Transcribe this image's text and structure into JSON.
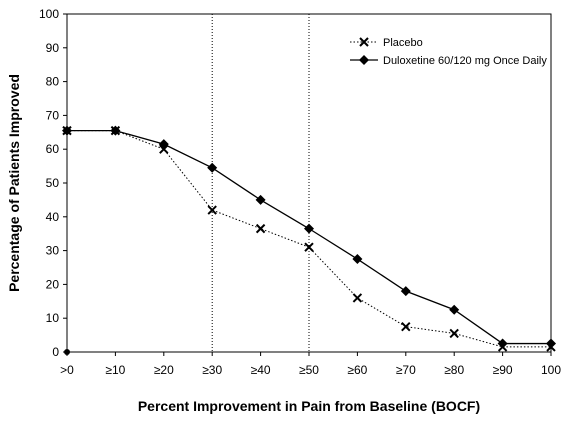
{
  "chart_data": {
    "type": "line",
    "categories": [
      ">0",
      "≥10",
      "≥20",
      "≥30",
      "≥40",
      "≥50",
      "≥60",
      "≥70",
      "≥80",
      "≥90",
      "100"
    ],
    "xlabel": "Percent Improvement in Pain from Baseline (BOCF)",
    "ylabel": "Percentage of Patients Improved",
    "ylim": [
      0,
      100
    ],
    "yticks": [
      0,
      10,
      20,
      30,
      40,
      50,
      60,
      70,
      80,
      90,
      100
    ],
    "reference_lines_at": [
      "≥30",
      "≥50"
    ],
    "grid": false,
    "legend_position": "top-right",
    "series": [
      {
        "name": "Placebo",
        "marker": "x",
        "line_style": "dotted",
        "color": "#000000",
        "values": [
          65.5,
          65.5,
          60,
          42,
          36.5,
          31,
          16,
          7.5,
          5.5,
          1.5,
          1.5
        ]
      },
      {
        "name": "Duloxetine 60/120 mg Once Daily",
        "marker": "diamond",
        "line_style": "solid",
        "color": "#000000",
        "values": [
          65.5,
          65.5,
          61.5,
          54.5,
          45,
          36.5,
          27.5,
          18,
          12.5,
          2.5,
          2.5
        ]
      }
    ],
    "annotations": [
      {
        "at": ">0",
        "value": 0,
        "marker": "dot"
      }
    ]
  }
}
